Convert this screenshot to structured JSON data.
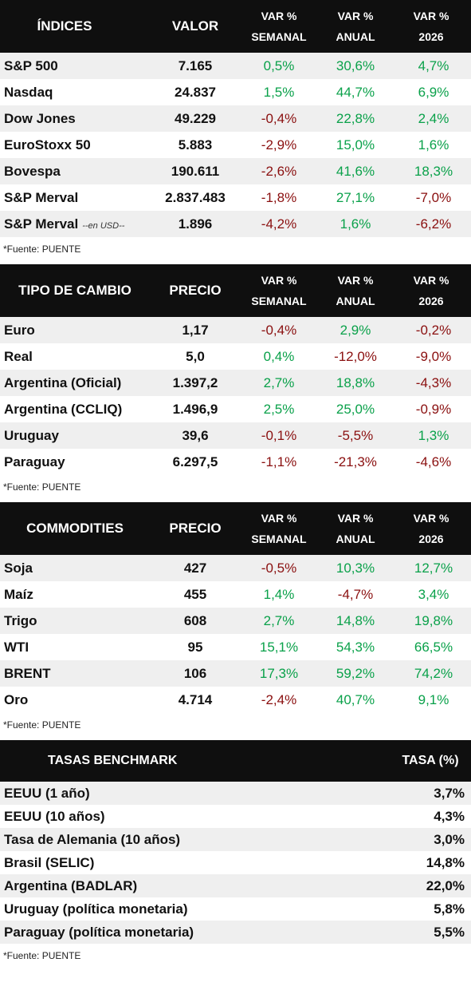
{
  "indices": {
    "headers": [
      "ÍNDICES",
      "VALOR",
      "VAR %",
      "SEMANAL",
      "VAR %",
      "ANUAL",
      "VAR %",
      "2026"
    ],
    "rows": [
      {
        "name": "S&P 500",
        "sub": "",
        "value": "7.165",
        "weekly": "0,5%",
        "annual": "30,6%",
        "ytd": "4,7%"
      },
      {
        "name": "Nasdaq",
        "sub": "",
        "value": "24.837",
        "weekly": "1,5%",
        "annual": "44,7%",
        "ytd": "6,9%"
      },
      {
        "name": "Dow Jones",
        "sub": "",
        "value": "49.229",
        "weekly": "-0,4%",
        "annual": "22,8%",
        "ytd": "2,4%"
      },
      {
        "name": "EuroStoxx 50",
        "sub": "",
        "value": "5.883",
        "weekly": "-2,9%",
        "annual": "15,0%",
        "ytd": "1,6%"
      },
      {
        "name": "Bovespa",
        "sub": "",
        "value": "190.611",
        "weekly": "-2,6%",
        "annual": "41,6%",
        "ytd": "18,3%"
      },
      {
        "name": "S&P Merval",
        "sub": "",
        "value": "2.837.483",
        "weekly": "-1,8%",
        "annual": "27,1%",
        "ytd": "-7,0%"
      },
      {
        "name": "S&P Merval",
        "sub": "--en USD--",
        "value": "1.896",
        "weekly": "-4,2%",
        "annual": "1,6%",
        "ytd": "-6,2%"
      }
    ],
    "source": "*Fuente: PUENTE"
  },
  "fx": {
    "headers": [
      "TIPO DE CAMBIO",
      "PRECIO",
      "VAR %",
      "SEMANAL",
      "VAR %",
      "ANUAL",
      "VAR %",
      "2026"
    ],
    "rows": [
      {
        "name": "Euro",
        "value": "1,17",
        "weekly": "-0,4%",
        "annual": "2,9%",
        "ytd": "-0,2%"
      },
      {
        "name": "Real",
        "value": "5,0",
        "weekly": "0,4%",
        "annual": "-12,0%",
        "ytd": "-9,0%"
      },
      {
        "name": "Argentina (Oficial)",
        "value": "1.397,2",
        "weekly": "2,7%",
        "annual": "18,8%",
        "ytd": "-4,3%"
      },
      {
        "name": "Argentina (CCLIQ)",
        "value": "1.496,9",
        "weekly": "2,5%",
        "annual": "25,0%",
        "ytd": "-0,9%"
      },
      {
        "name": "Uruguay",
        "value": "39,6",
        "weekly": "-0,1%",
        "annual": "-5,5%",
        "ytd": "1,3%"
      },
      {
        "name": "Paraguay",
        "value": "6.297,5",
        "weekly": "-1,1%",
        "annual": "-21,3%",
        "ytd": "-4,6%"
      }
    ],
    "source": "*Fuente: PUENTE"
  },
  "commodities": {
    "headers": [
      "COMMODITIES",
      "PRECIO",
      "VAR %",
      "SEMANAL",
      "VAR %",
      "ANUAL",
      "VAR %",
      "2026"
    ],
    "rows": [
      {
        "name": "Soja",
        "value": "427",
        "weekly": "-0,5%",
        "annual": "10,3%",
        "ytd": "12,7%"
      },
      {
        "name": "Maíz",
        "value": "455",
        "weekly": "1,4%",
        "annual": "-4,7%",
        "ytd": "3,4%"
      },
      {
        "name": "Trigo",
        "value": "608",
        "weekly": "2,7%",
        "annual": "14,8%",
        "ytd": "19,8%"
      },
      {
        "name": "WTI",
        "value": "95",
        "weekly": "15,1%",
        "annual": "54,3%",
        "ytd": "66,5%"
      },
      {
        "name": "BRENT",
        "value": "106",
        "weekly": "17,3%",
        "annual": "59,2%",
        "ytd": "74,2%"
      },
      {
        "name": "Oro",
        "value": "4.714",
        "weekly": "-2,4%",
        "annual": "40,7%",
        "ytd": "9,1%"
      }
    ],
    "source": "*Fuente: PUENTE"
  },
  "rates": {
    "headers": [
      "TASAS BENCHMARK",
      "TASA (%)"
    ],
    "rows": [
      {
        "name": "EEUU (1 año)",
        "value": "3,7%"
      },
      {
        "name": "EEUU (10 años)",
        "value": "4,3%"
      },
      {
        "name": "Tasa de Alemania (10 años)",
        "value": "3,0%"
      },
      {
        "name": "Brasil (SELIC)",
        "value": "14,8%"
      },
      {
        "name": "Argentina (BADLAR)",
        "value": "22,0%"
      },
      {
        "name": "Uruguay (política monetaria)",
        "value": "5,8%"
      },
      {
        "name": "Paraguay (política monetaria)",
        "value": "5,5%"
      }
    ],
    "source": "*Fuente: PUENTE"
  },
  "colors": {
    "positive": "#0aa14a",
    "negative": "#8a0f0f",
    "header_bg": "#0f0f0f",
    "stripe": "#efefef"
  }
}
